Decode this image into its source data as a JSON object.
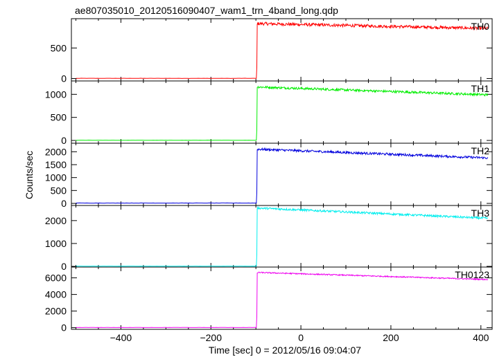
{
  "chart_data": {
    "type": "line",
    "title": "ae807035010_20120516090407_wam1_trn_4band_long.qdp",
    "xlabel": "Time [sec] 0 = 2012/05/16 09:04:07",
    "ylabel": "Counts/sec",
    "xlim": [
      -510,
      425
    ],
    "xticks": [
      -400,
      -200,
      0,
      200,
      400
    ],
    "grid": false,
    "trigger_time": -97,
    "series_end_time": 415,
    "panels": [
      {
        "name": "TH0",
        "color": "#ff0000",
        "ylim": [
          -40,
          980
        ],
        "yticks": [
          0,
          500
        ],
        "pre_level": 3,
        "peak": 900,
        "end": 820,
        "noise": 25
      },
      {
        "name": "TH1",
        "color": "#00ee00",
        "ylim": [
          -60,
          1290
        ],
        "yticks": [
          0,
          500,
          1000
        ],
        "pre_level": 5,
        "peak": 1160,
        "end": 990,
        "noise": 25
      },
      {
        "name": "TH2",
        "color": "#0000dd",
        "ylim": [
          -80,
          2330
        ],
        "yticks": [
          0,
          500,
          1000,
          1500,
          2000
        ],
        "pre_level": 15,
        "peak": 2100,
        "end": 1760,
        "noise": 45
      },
      {
        "name": "TH3",
        "color": "#00eeee",
        "ylim": [
          -30,
          2660
        ],
        "yticks": [
          0,
          1000,
          2000
        ],
        "pre_level": 10,
        "peak": 2550,
        "end": 2100,
        "noise": 45
      },
      {
        "name": "TH0123",
        "color": "#ee00ee",
        "ylim": [
          -200,
          7300
        ],
        "yticks": [
          0,
          2000,
          4000,
          6000
        ],
        "pre_level": 20,
        "peak": 6650,
        "end": 5800,
        "noise": 70
      }
    ]
  }
}
